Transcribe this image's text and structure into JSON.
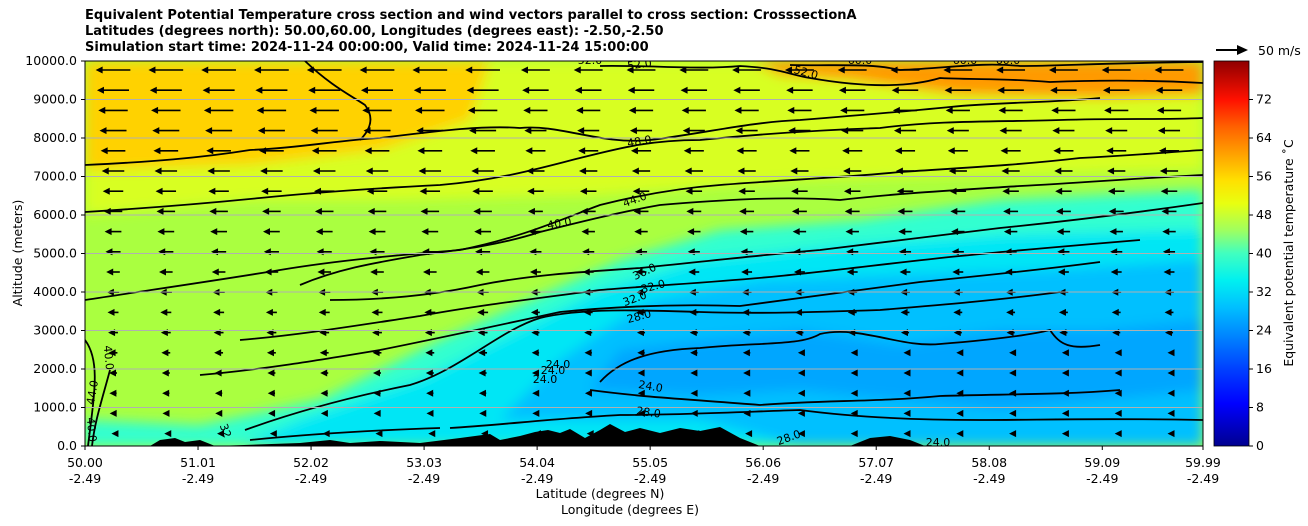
{
  "chart_data": {
    "type": "heatmap",
    "title_lines": [
      "Equivalent Potential Temperature cross section and wind vectors parallel to cross section: CrosssectionA",
      "Latitudes (degrees north): 50.00,60.00, Longitudes (degrees east): -2.50,-2.50",
      "Simulation start time: 2024-11-24 00:00:00, Valid time: 2024-11-24 15:00:00"
    ],
    "ylabel": "Altitude (meters)",
    "xlabel_lines": [
      "Latitude (degrees N)",
      "Longitude (degrees E)"
    ],
    "y_ticks": [
      "0.0",
      "1000.0",
      "2000.0",
      "3000.0",
      "4000.0",
      "5000.0",
      "6000.0",
      "7000.0",
      "8000.0",
      "9000.0",
      "10000.0"
    ],
    "y_tick_values": [
      0,
      1000,
      2000,
      3000,
      4000,
      5000,
      6000,
      7000,
      8000,
      9000,
      10000
    ],
    "ylim": [
      0,
      10000
    ],
    "x_ticks_lat": [
      "50.00",
      "51.01",
      "52.02",
      "53.03",
      "54.04",
      "55.05",
      "56.06",
      "57.07",
      "58.08",
      "59.09",
      "59.99"
    ],
    "x_ticks_lon": [
      "-2.49",
      "-2.49",
      "-2.49",
      "-2.49",
      "-2.49",
      "-2.49",
      "-2.49",
      "-2.49",
      "-2.49",
      "-2.49",
      "-2.49"
    ],
    "xlim": [
      50.0,
      59.99
    ],
    "grid": "horizontal lines at y ticks",
    "colorbar": {
      "label": "Equivalent potential temperature ˚C",
      "ticks": [
        "0",
        "8",
        "16",
        "24",
        "32",
        "40",
        "48",
        "56",
        "64",
        "72"
      ],
      "range": [
        0,
        80
      ],
      "colormap": "jet"
    },
    "quiver_key": "50 m/s",
    "contour_labels": [
      "52.0",
      "52.0",
      "60.0",
      "60.0",
      "60.0",
      "52.0",
      "48.0",
      "44.0",
      "40.0",
      "36.0",
      "32.0",
      "32.0",
      "28.0",
      "24.0",
      "24.0",
      "24.0",
      "24.0",
      "28.0",
      "28.0",
      "24.0",
      "40.0",
      "44.0",
      "40.0",
      "32"
    ],
    "terrain_color": "#000000",
    "notes_fields": {
      "wind_direction": "southward (arrows pointing left), strongest aloft"
    }
  }
}
